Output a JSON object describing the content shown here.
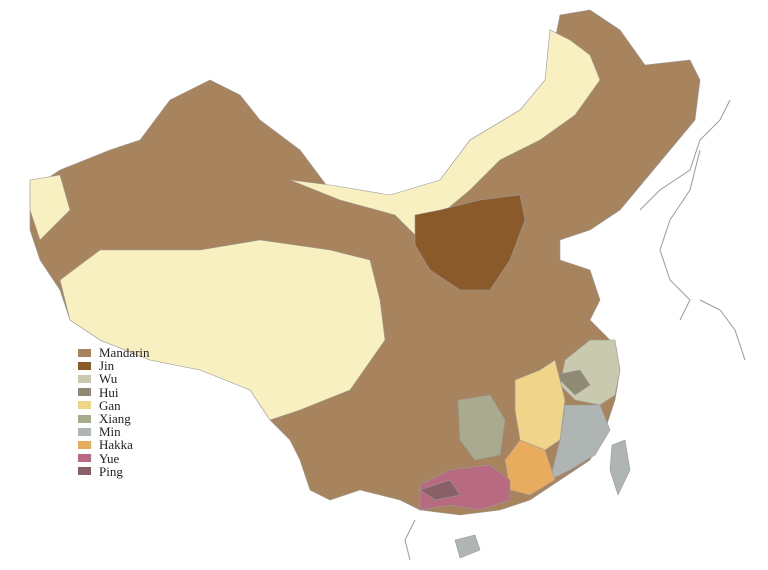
{
  "legend": [
    {
      "label": "Mandarin",
      "color": "#a8845e"
    },
    {
      "label": "Jin",
      "color": "#8a5a2b"
    },
    {
      "label": "Wu",
      "color": "#c9c9b0"
    },
    {
      "label": "Hui",
      "color": "#8e8a73"
    },
    {
      "label": "Gan",
      "color": "#f0d48a"
    },
    {
      "label": "Xiang",
      "color": "#a9ab8e"
    },
    {
      "label": "Min",
      "color": "#aeb5b3"
    },
    {
      "label": "Hakka",
      "color": "#e8ac5e"
    },
    {
      "label": "Yue",
      "color": "#b86a80"
    },
    {
      "label": "Ping",
      "color": "#8a6068"
    }
  ],
  "colors": {
    "non_chinese": "#f8f0c0",
    "border": "#9a9a9a"
  }
}
